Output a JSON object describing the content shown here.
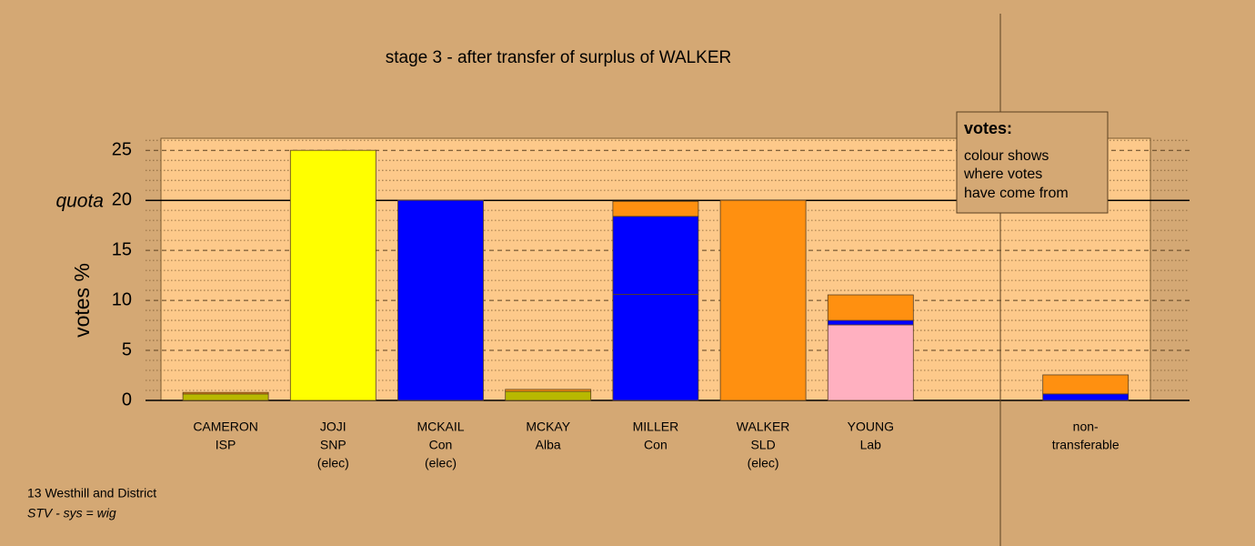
{
  "chart_data": {
    "type": "bar",
    "stacked": true,
    "title": "stage 3 - after transfer of surplus of WALKER",
    "y_label": "votes %",
    "categories": [
      [
        "CAMERON",
        "ISP"
      ],
      [
        "JOJI",
        "SNP",
        "(elec)"
      ],
      [
        "MCKAIL",
        "Con",
        "(elec)"
      ],
      [
        "MCKAY",
        "Alba"
      ],
      [
        "MILLER",
        "Con"
      ],
      [
        "WALKER",
        "SLD",
        "(elec)"
      ],
      [
        "YOUNG",
        "Lab"
      ],
      null,
      [
        "non-",
        "transferable"
      ]
    ],
    "series": [
      {
        "color": "#b8b800",
        "values": [
          0.65,
          0,
          0,
          0.9,
          0,
          0,
          0,
          null,
          0
        ]
      },
      {
        "color": "#ffff00",
        "values": [
          0,
          25,
          0,
          0,
          0,
          0,
          0,
          null,
          0
        ]
      },
      {
        "color": "#ffb0c0",
        "values": [
          0,
          0,
          0,
          0,
          0,
          0,
          7.55,
          null,
          0
        ]
      },
      {
        "color": "#0000ff",
        "values": [
          0,
          0,
          20,
          0,
          10.6,
          0,
          0.45,
          null,
          0.65
        ]
      },
      {
        "color": "#0000ff",
        "values": [
          0,
          0,
          0,
          0,
          7.8,
          0,
          0,
          null,
          0
        ]
      },
      {
        "color": "#ff9010",
        "values": [
          0.15,
          0,
          0,
          0.2,
          1.5,
          20,
          2.55,
          null,
          1.9
        ]
      }
    ],
    "ylim": [
      0,
      26.2
    ],
    "yticks": [
      0,
      5,
      10,
      15,
      20,
      25
    ],
    "minor_yticks": [
      1,
      2,
      3,
      4,
      6,
      7,
      8,
      9,
      11,
      12,
      13,
      14,
      16,
      17,
      18,
      19,
      21,
      22,
      23,
      24,
      26
    ],
    "quota": 20,
    "quota_label": "quota",
    "legend": {
      "title": "votes:",
      "lines": [
        "colour shows",
        "where votes",
        "have come from"
      ]
    },
    "footer": {
      "constituency": "13 Westhill and District",
      "system": "STV - sys = wig"
    }
  }
}
